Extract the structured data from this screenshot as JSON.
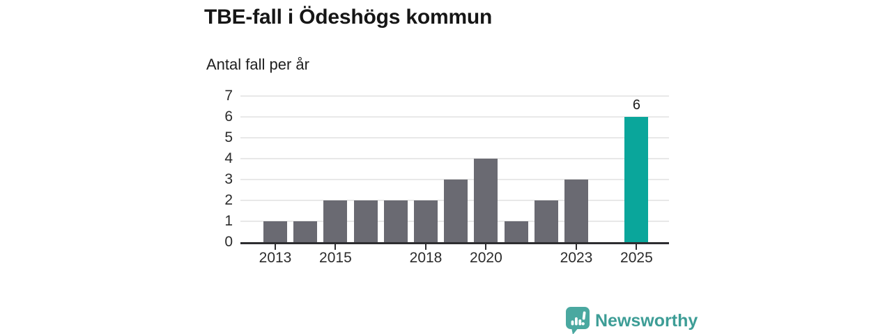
{
  "header": {
    "title": "TBE-fall i Ödeshögs kommun",
    "subtitle": "Antal fall per år"
  },
  "chart_data": {
    "type": "bar",
    "title": "TBE-fall i Ödeshögs kommun",
    "subtitle": "Antal fall per år",
    "categories": [
      2013,
      2014,
      2015,
      2016,
      2017,
      2018,
      2019,
      2020,
      2021,
      2022,
      2023,
      2024,
      2025
    ],
    "values": [
      1,
      1,
      2,
      2,
      2,
      2,
      3,
      4,
      1,
      2,
      3,
      0,
      6
    ],
    "highlight_category": 2025,
    "annotations": [
      {
        "category": 2025,
        "text": "6"
      }
    ],
    "yticks": [
      0,
      1,
      2,
      3,
      4,
      5,
      6,
      7
    ],
    "xticks": [
      2013,
      2015,
      2018,
      2020,
      2023,
      2025
    ],
    "ylim": [
      0,
      7
    ],
    "grid": true,
    "legend": false,
    "colors": {
      "bar": "#6a6a72",
      "highlight": "#0aa69b",
      "grid": "#e8e8e8",
      "axis": "#2d2d30",
      "label_text": "#2b2b2b"
    }
  },
  "footer": {
    "brand": "Newsworthy",
    "logo_icon": "bar-chart-speech-bubble",
    "brand_text_color": "#3d9d96",
    "logo_bubble_color": "#4aa8a0"
  }
}
